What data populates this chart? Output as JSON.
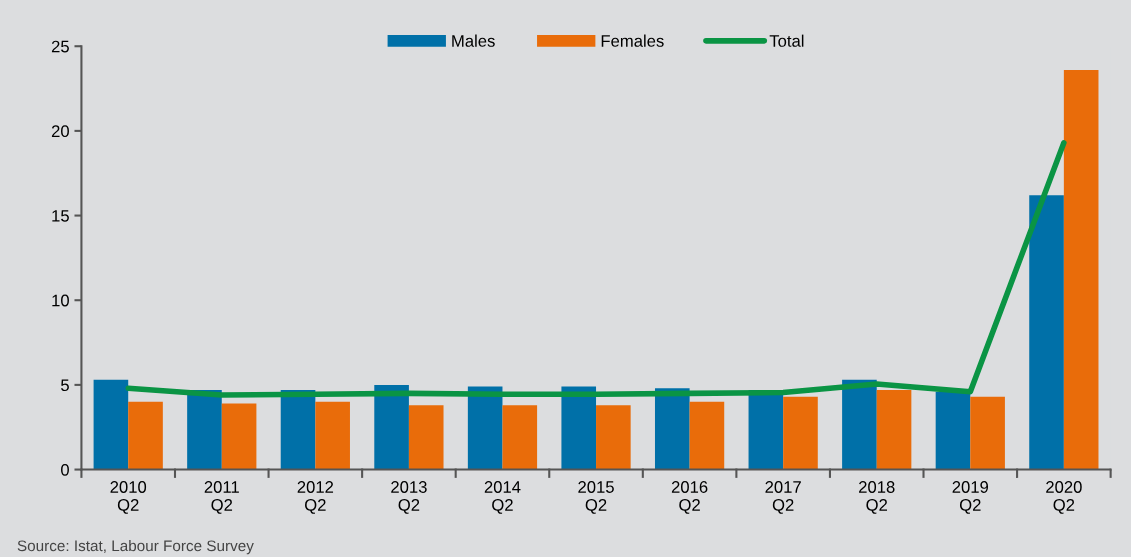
{
  "chart_data": {
    "type": "bar",
    "categories": [
      "2010\nQ2",
      "2011\nQ2",
      "2012\nQ2",
      "2013\nQ2",
      "2014\nQ2",
      "2015\nQ2",
      "2016\nQ2",
      "2017\nQ2",
      "2018\nQ2",
      "2019\nQ2",
      "2020\nQ2"
    ],
    "series": [
      {
        "name": "Males",
        "color": "#0070a8",
        "values": [
          5.3,
          4.7,
          4.7,
          5.0,
          4.9,
          4.9,
          4.8,
          4.7,
          5.3,
          4.6,
          16.2
        ]
      },
      {
        "name": "Females",
        "color": "#e96c0a",
        "values": [
          4.0,
          3.9,
          4.0,
          3.8,
          3.8,
          3.8,
          4.0,
          4.3,
          4.7,
          4.3,
          23.6
        ]
      },
      {
        "name": "Total",
        "type": "line",
        "color": "#0a9444",
        "values": [
          4.8,
          4.4,
          4.45,
          4.5,
          4.45,
          4.45,
          4.5,
          4.55,
          5.05,
          4.6,
          19.3
        ]
      }
    ],
    "ylim": [
      0,
      25
    ],
    "yticks": [
      0,
      5,
      10,
      15,
      20,
      25
    ],
    "grid": false,
    "legend": "top",
    "annotations": [
      "Source: Istat, Labour Force Survey"
    ]
  }
}
